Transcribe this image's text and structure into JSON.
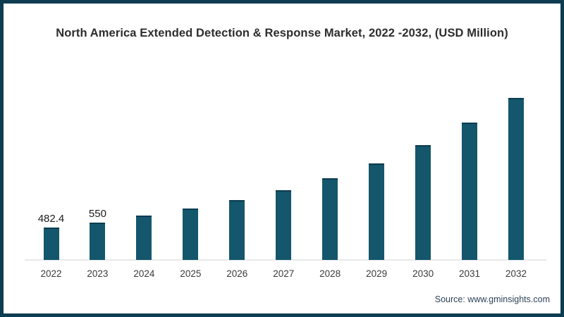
{
  "title": "North America Extended Detection & Response Market, 2022 -2032, (USD Million)",
  "source": "Source: www.gminsights.com",
  "colors": {
    "bar": "#14566b",
    "bar_top_edge": "#0c3c4f",
    "frame_border": "#0e3c51",
    "axis_line": "#e9e9e9",
    "title_text": "#2d2d2d",
    "tick_text": "#3a3a3a",
    "value_label_text": "#1c1c1c",
    "source_text": "#2e4257"
  },
  "chart_data": {
    "type": "bar",
    "title": "North America Extended Detection & Response Market, 2022 -2032, (USD Million)",
    "categories": [
      "2022",
      "2023",
      "2024",
      "2025",
      "2026",
      "2027",
      "2028",
      "2029",
      "2030",
      "2031",
      "2032"
    ],
    "values": [
      482.4,
      550,
      655,
      755,
      880,
      1030,
      1205,
      1420,
      1690,
      2020,
      2390
    ],
    "data_labels": [
      "482.4",
      "550",
      "",
      "",
      "",
      "",
      "",
      "",
      "",
      "",
      ""
    ],
    "xlabel": "",
    "ylabel": "",
    "unit": "USD Million",
    "ylim": [
      0,
      2500
    ],
    "grid": false,
    "legend": false,
    "bar_color": "#14566b"
  }
}
